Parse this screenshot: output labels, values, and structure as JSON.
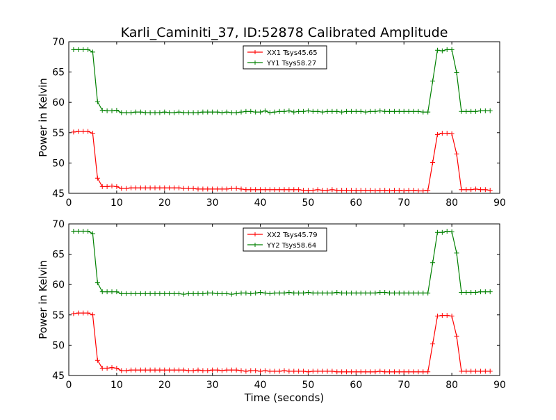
{
  "title": "Karli_Caminiti_37, ID:52878 Calibrated Amplitude",
  "chart_data": [
    {
      "type": "line",
      "title": "Karli_Caminiti_37, ID:52878 Calibrated Amplitude",
      "xlabel": "",
      "ylabel": "Power in Kelvin",
      "xlim": [
        0,
        90
      ],
      "ylim": [
        45,
        70
      ],
      "xticks": [
        "0",
        "10",
        "20",
        "30",
        "40",
        "50",
        "60",
        "70",
        "80",
        "90"
      ],
      "yticks": [
        "45",
        "50",
        "55",
        "60",
        "65",
        "70"
      ],
      "grid": false,
      "legend_position": "top-center",
      "series": [
        {
          "name": "XX1 Tsys45.65",
          "color": "#ff0000",
          "x": [
            1,
            2,
            3,
            4,
            5,
            6,
            7,
            8,
            9,
            10,
            11,
            12,
            13,
            14,
            15,
            16,
            17,
            18,
            19,
            20,
            21,
            22,
            23,
            24,
            25,
            26,
            27,
            28,
            29,
            30,
            31,
            32,
            33,
            34,
            35,
            36,
            37,
            38,
            39,
            40,
            41,
            42,
            43,
            44,
            45,
            46,
            47,
            48,
            49,
            50,
            51,
            52,
            53,
            54,
            55,
            56,
            57,
            58,
            59,
            60,
            61,
            62,
            63,
            64,
            65,
            66,
            67,
            68,
            69,
            70,
            71,
            72,
            73,
            74,
            75,
            76,
            77,
            78,
            79,
            80,
            81,
            82,
            83,
            84,
            85,
            86,
            87,
            88
          ],
          "values": [
            55.1,
            55.2,
            55.2,
            55.2,
            54.9,
            47.5,
            46.1,
            46.1,
            46.2,
            46.1,
            45.8,
            45.8,
            45.9,
            45.9,
            45.9,
            45.9,
            45.9,
            45.9,
            45.9,
            45.9,
            45.9,
            45.9,
            45.9,
            45.8,
            45.8,
            45.8,
            45.7,
            45.7,
            45.7,
            45.7,
            45.7,
            45.7,
            45.7,
            45.8,
            45.8,
            45.7,
            45.6,
            45.6,
            45.6,
            45.6,
            45.6,
            45.6,
            45.6,
            45.6,
            45.6,
            45.6,
            45.6,
            45.6,
            45.5,
            45.5,
            45.5,
            45.6,
            45.5,
            45.5,
            45.6,
            45.5,
            45.5,
            45.5,
            45.5,
            45.5,
            45.5,
            45.5,
            45.5,
            45.4,
            45.5,
            45.5,
            45.4,
            45.5,
            45.5,
            45.4,
            45.5,
            45.5,
            45.4,
            45.4,
            45.5,
            50.1,
            54.7,
            54.9,
            54.9,
            54.8,
            51.5,
            45.6,
            45.6,
            45.6,
            45.7,
            45.6,
            45.6,
            45.5
          ]
        },
        {
          "name": "YY1 Tsys58.27",
          "color": "#008000",
          "x": [
            1,
            2,
            3,
            4,
            5,
            6,
            7,
            8,
            9,
            10,
            11,
            12,
            13,
            14,
            15,
            16,
            17,
            18,
            19,
            20,
            21,
            22,
            23,
            24,
            25,
            26,
            27,
            28,
            29,
            30,
            31,
            32,
            33,
            34,
            35,
            36,
            37,
            38,
            39,
            40,
            41,
            42,
            43,
            44,
            45,
            46,
            47,
            48,
            49,
            50,
            51,
            52,
            53,
            54,
            55,
            56,
            57,
            58,
            59,
            60,
            61,
            62,
            63,
            64,
            65,
            66,
            67,
            68,
            69,
            70,
            71,
            72,
            73,
            74,
            75,
            76,
            77,
            78,
            79,
            80,
            81,
            82,
            83,
            84,
            85,
            86,
            87,
            88
          ],
          "values": [
            68.7,
            68.7,
            68.7,
            68.7,
            68.3,
            60.1,
            58.7,
            58.6,
            58.6,
            58.7,
            58.3,
            58.3,
            58.3,
            58.4,
            58.4,
            58.3,
            58.3,
            58.3,
            58.3,
            58.4,
            58.3,
            58.3,
            58.4,
            58.3,
            58.3,
            58.3,
            58.3,
            58.4,
            58.4,
            58.4,
            58.4,
            58.3,
            58.4,
            58.3,
            58.3,
            58.4,
            58.5,
            58.5,
            58.4,
            58.4,
            58.6,
            58.3,
            58.4,
            58.5,
            58.5,
            58.6,
            58.4,
            58.5,
            58.5,
            58.6,
            58.5,
            58.5,
            58.4,
            58.5,
            58.5,
            58.5,
            58.4,
            58.5,
            58.5,
            58.5,
            58.5,
            58.4,
            58.5,
            58.5,
            58.6,
            58.5,
            58.5,
            58.5,
            58.5,
            58.5,
            58.5,
            58.5,
            58.5,
            58.4,
            58.4,
            63.5,
            68.6,
            68.5,
            68.7,
            68.7,
            64.9,
            58.5,
            58.5,
            58.5,
            58.5,
            58.6,
            58.6,
            58.6
          ]
        }
      ]
    },
    {
      "type": "line",
      "title": "",
      "xlabel": "Time (seconds)",
      "ylabel": "Power in Kelvin",
      "xlim": [
        0,
        90
      ],
      "ylim": [
        45,
        70
      ],
      "xticks": [
        "0",
        "10",
        "20",
        "30",
        "40",
        "50",
        "60",
        "70",
        "80",
        "90"
      ],
      "yticks": [
        "45",
        "50",
        "55",
        "60",
        "65",
        "70"
      ],
      "grid": false,
      "legend_position": "top-center",
      "series": [
        {
          "name": "XX2 Tsys45.79",
          "color": "#ff0000",
          "x": [
            1,
            2,
            3,
            4,
            5,
            6,
            7,
            8,
            9,
            10,
            11,
            12,
            13,
            14,
            15,
            16,
            17,
            18,
            19,
            20,
            21,
            22,
            23,
            24,
            25,
            26,
            27,
            28,
            29,
            30,
            31,
            32,
            33,
            34,
            35,
            36,
            37,
            38,
            39,
            40,
            41,
            42,
            43,
            44,
            45,
            46,
            47,
            48,
            49,
            50,
            51,
            52,
            53,
            54,
            55,
            56,
            57,
            58,
            59,
            60,
            61,
            62,
            63,
            64,
            65,
            66,
            67,
            68,
            69,
            70,
            71,
            72,
            73,
            74,
            75,
            76,
            77,
            78,
            79,
            80,
            81,
            82,
            83,
            84,
            85,
            86,
            87,
            88
          ],
          "values": [
            55.2,
            55.3,
            55.3,
            55.3,
            55.0,
            47.5,
            46.2,
            46.2,
            46.3,
            46.2,
            45.8,
            45.8,
            45.9,
            45.9,
            45.9,
            45.9,
            45.9,
            45.9,
            45.9,
            45.9,
            45.9,
            45.9,
            45.9,
            45.9,
            45.8,
            45.8,
            45.9,
            45.8,
            45.8,
            45.9,
            45.9,
            45.8,
            45.9,
            45.9,
            45.9,
            45.8,
            45.7,
            45.8,
            45.8,
            45.7,
            45.8,
            45.7,
            45.7,
            45.7,
            45.8,
            45.7,
            45.7,
            45.7,
            45.7,
            45.6,
            45.7,
            45.7,
            45.7,
            45.7,
            45.7,
            45.6,
            45.6,
            45.6,
            45.6,
            45.6,
            45.6,
            45.6,
            45.6,
            45.6,
            45.7,
            45.6,
            45.6,
            45.6,
            45.6,
            45.6,
            45.6,
            45.6,
            45.6,
            45.6,
            45.6,
            50.2,
            54.8,
            54.9,
            54.9,
            54.8,
            51.5,
            45.7,
            45.7,
            45.7,
            45.7,
            45.7,
            45.7,
            45.7
          ]
        },
        {
          "name": "YY2 Tsys58.64",
          "color": "#008000",
          "x": [
            1,
            2,
            3,
            4,
            5,
            6,
            7,
            8,
            9,
            10,
            11,
            12,
            13,
            14,
            15,
            16,
            17,
            18,
            19,
            20,
            21,
            22,
            23,
            24,
            25,
            26,
            27,
            28,
            29,
            30,
            31,
            32,
            33,
            34,
            35,
            36,
            37,
            38,
            39,
            40,
            41,
            42,
            43,
            44,
            45,
            46,
            47,
            48,
            49,
            50,
            51,
            52,
            53,
            54,
            55,
            56,
            57,
            58,
            59,
            60,
            61,
            62,
            63,
            64,
            65,
            66,
            67,
            68,
            69,
            70,
            71,
            72,
            73,
            74,
            75,
            76,
            77,
            78,
            79,
            80,
            81,
            82,
            83,
            84,
            85,
            86,
            87,
            88
          ],
          "values": [
            68.8,
            68.8,
            68.8,
            68.8,
            68.4,
            60.3,
            58.8,
            58.8,
            58.8,
            58.8,
            58.5,
            58.5,
            58.5,
            58.5,
            58.5,
            58.5,
            58.5,
            58.5,
            58.5,
            58.5,
            58.5,
            58.5,
            58.5,
            58.4,
            58.5,
            58.5,
            58.5,
            58.5,
            58.6,
            58.6,
            58.5,
            58.5,
            58.5,
            58.4,
            58.5,
            58.6,
            58.6,
            58.5,
            58.6,
            58.7,
            58.6,
            58.5,
            58.6,
            58.6,
            58.6,
            58.7,
            58.6,
            58.6,
            58.6,
            58.7,
            58.6,
            58.6,
            58.6,
            58.6,
            58.6,
            58.7,
            58.6,
            58.6,
            58.6,
            58.6,
            58.6,
            58.6,
            58.6,
            58.6,
            58.7,
            58.7,
            58.6,
            58.6,
            58.6,
            58.6,
            58.6,
            58.6,
            58.6,
            58.6,
            58.6,
            63.6,
            68.6,
            68.6,
            68.8,
            68.7,
            65.2,
            58.7,
            58.7,
            58.7,
            58.7,
            58.8,
            58.8,
            58.8
          ]
        }
      ]
    }
  ]
}
